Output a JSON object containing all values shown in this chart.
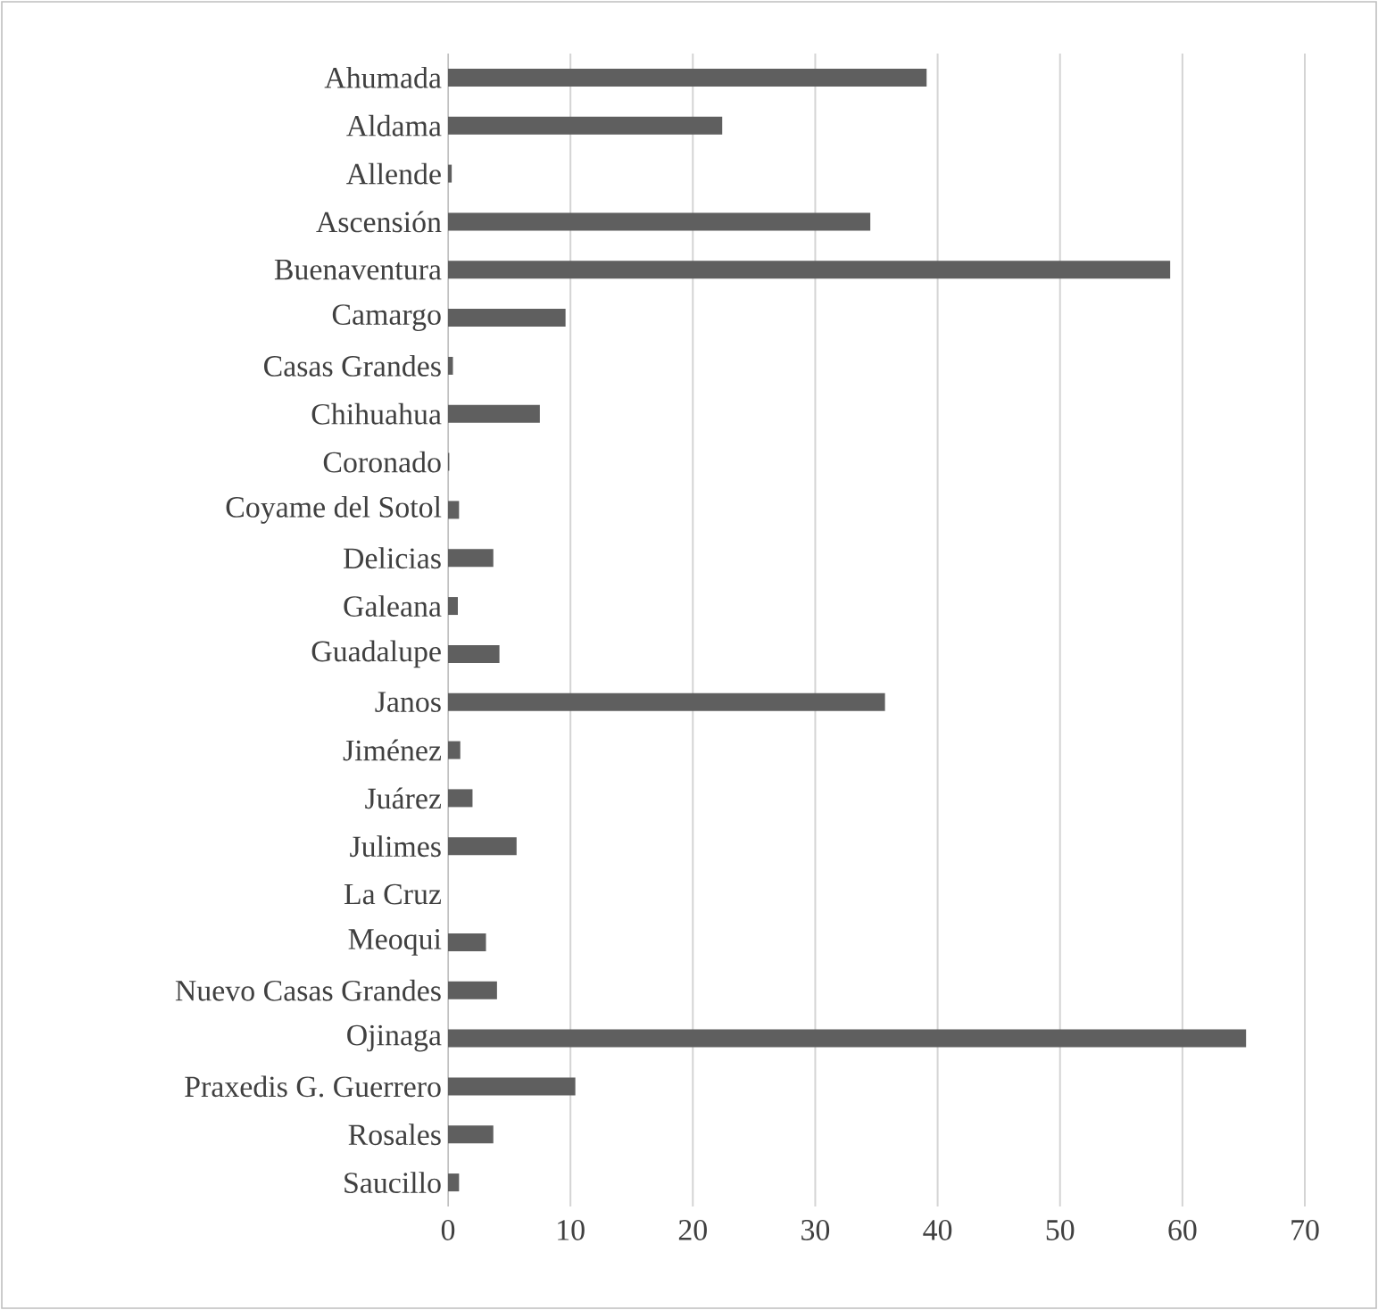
{
  "chart_data": {
    "type": "bar",
    "orientation": "horizontal",
    "categories": [
      "Ahumada",
      "Aldama",
      "Allende",
      "Ascensión",
      "Buenaventura",
      "Camargo",
      "Casas Grandes",
      "Chihuahua",
      "Coronado",
      "Coyame del Sotol",
      "Delicias",
      "Galeana",
      "Guadalupe",
      "Janos",
      "Jiménez",
      "Juárez",
      "Julimes",
      "La Cruz",
      "Meoqui",
      "Nuevo Casas Grandes",
      "Ojinaga",
      "Praxedis G. Guerrero",
      "Rosales",
      "Saucillo"
    ],
    "values": [
      39.1,
      22.4,
      0.3,
      34.5,
      59.0,
      9.6,
      0.4,
      7.5,
      0.1,
      0.9,
      3.7,
      0.8,
      4.2,
      35.7,
      1.0,
      2.0,
      5.6,
      0,
      3.1,
      4.0,
      65.2,
      10.4,
      3.7,
      0.9
    ],
    "color": "#5f5f5f",
    "xlim": [
      0,
      70
    ],
    "xticks": [
      0,
      10,
      20,
      30,
      40,
      50,
      60,
      70
    ],
    "grid": "x"
  }
}
